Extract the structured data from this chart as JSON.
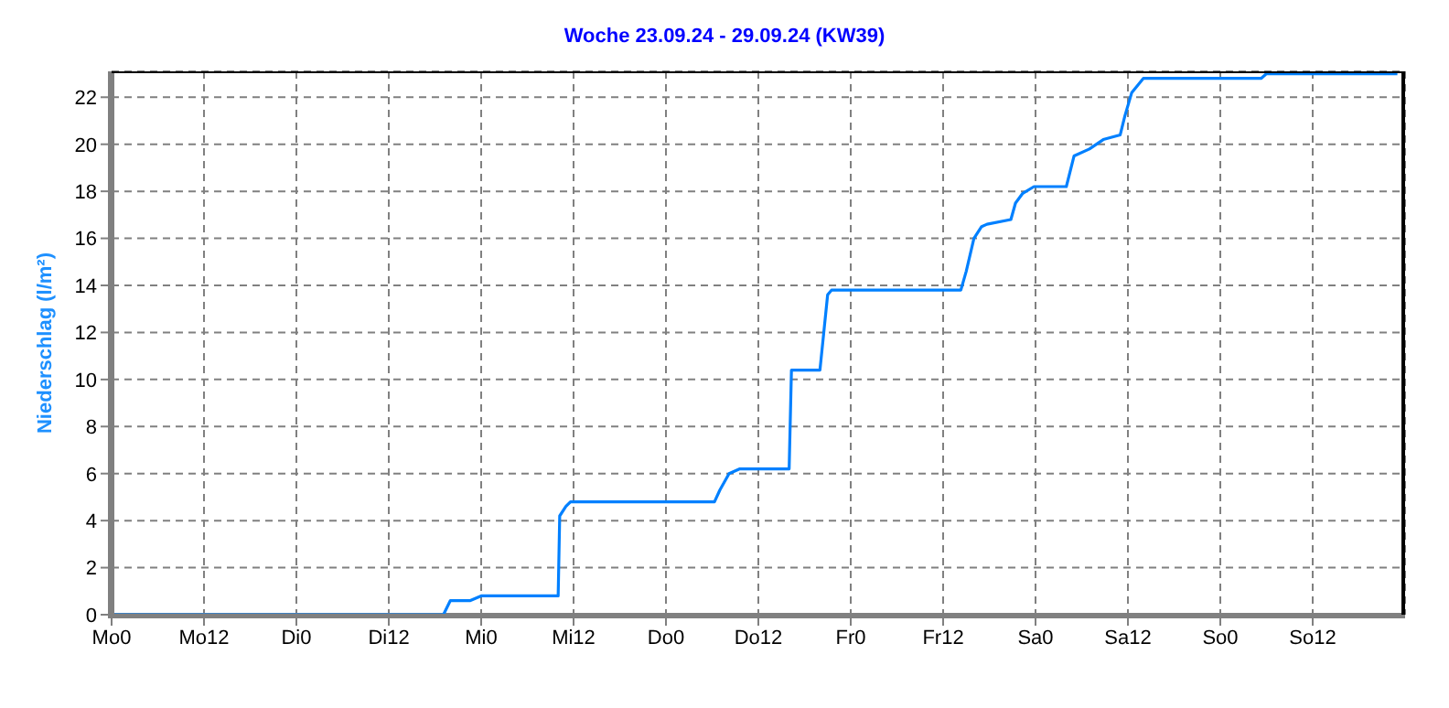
{
  "chart_data": {
    "type": "line",
    "title": "Woche 23.09.24 - 29.09.24 (KW39)",
    "ylabel": "Niederschlag  (l/m²)",
    "x": [
      "--09-23T00:00",
      "--09-24T19:06",
      "--09-24T20:00",
      "--09-24T22:36",
      "--09-25T00:00",
      "--09-25T10:00",
      "--09-25T10:12",
      "--09-25T11:00",
      "--09-25T11:36",
      "--09-26T06:18",
      "--09-26T07:00",
      "--09-26T08:12",
      "--09-26T09:36",
      "--09-26T16:00",
      "--09-26T16:18",
      "--09-26T20:00",
      "--09-26T20:30",
      "--09-26T21:00",
      "--09-26T21:30",
      "--09-27T14:18",
      "--09-27T15:00",
      "--09-27T16:00",
      "--09-27T17:00",
      "--09-27T17:42",
      "--09-27T20:48",
      "--09-27T21:24",
      "--09-27T22:18",
      "--09-27T23:48",
      "--09-28T04:00",
      "--09-28T05:00",
      "--09-28T07:00",
      "--09-28T08:48",
      "--09-28T11:00",
      "--09-28T11:36",
      "--09-28T12:30",
      "--09-28T14:00",
      "--09-29T05:18",
      "--09-29T06:00",
      "--09-29T23:00"
    ],
    "series": [
      {
        "color": "#0080ff",
        "values": [
          0,
          0,
          0.6,
          0.6,
          0.8,
          0.8,
          4.2,
          4.6,
          4.8,
          4.8,
          5.3,
          6.0,
          6.2,
          6.2,
          10.4,
          10.4,
          12,
          13.6,
          13.8,
          13.8,
          14.6,
          16.0,
          16.5,
          16.6,
          16.8,
          17.5,
          17.9,
          18.2,
          18.2,
          19.5,
          19.8,
          20.2,
          20.4,
          21.2,
          22.2,
          22.8,
          22.8,
          23.0,
          23.0
        ]
      }
    ],
    "xlim": [
      "--09-23T00:00",
      "--09-30T00:00"
    ],
    "xticks": [
      {
        "value": "--09-23T00:00",
        "label": "Mo0"
      },
      {
        "value": "--09-23T12:00",
        "label": "Mo12"
      },
      {
        "value": "--09-24T00:00",
        "label": "Di0"
      },
      {
        "value": "--09-24T12:00",
        "label": "Di12"
      },
      {
        "value": "--09-25T00:00",
        "label": "Mi0"
      },
      {
        "value": "--09-25T12:00",
        "label": "Mi12"
      },
      {
        "value": "--09-26T00:00",
        "label": "Do0"
      },
      {
        "value": "--09-26T12:00",
        "label": "Do12"
      },
      {
        "value": "--09-27T00:00",
        "label": "Fr0"
      },
      {
        "value": "--09-27T12:00",
        "label": "Fr12"
      },
      {
        "value": "--09-28T00:00",
        "label": "Sa0"
      },
      {
        "value": "--09-28T12:00",
        "label": "Sa12"
      },
      {
        "value": "--09-29T00:00",
        "label": "So0"
      },
      {
        "value": "--09-29T12:00",
        "label": "So12"
      }
    ],
    "ylim": [
      0,
      23.1
    ],
    "yticks": [
      0,
      2,
      4,
      6,
      8,
      10,
      12,
      14,
      16,
      18,
      20,
      22
    ],
    "grid": true,
    "legend": false,
    "marker": "none",
    "line_style": "solid"
  }
}
